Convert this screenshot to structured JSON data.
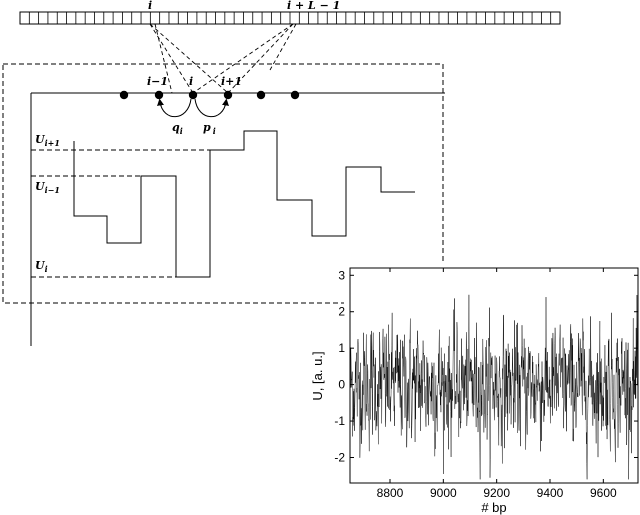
{
  "top_labels": {
    "i": "i",
    "i_plus_L_minus_1": "i + L − 1"
  },
  "site_labels": {
    "i_minus_1": "i−1",
    "i": "i",
    "i_plus_1": "i+1"
  },
  "rates": {
    "q": "q",
    "q_sub": "i",
    "p": "p",
    "p_sub": "i"
  },
  "potential_labels": {
    "u_plus": "U",
    "u_plus_sub": "i+1",
    "u_minus": "U",
    "u_minus_sub": "i−1",
    "u": "U",
    "u_sub": "i"
  },
  "chart_data": {
    "type": "line",
    "xlabel": "# bp",
    "ylabel": "U, [a. u.]",
    "xlim": [
      8650,
      9730
    ],
    "ylim": [
      -2.7,
      3.2
    ],
    "xticks": [
      8800,
      9000,
      9200,
      9400,
      9600
    ],
    "yticks": [
      -2,
      -1,
      0,
      1,
      2,
      3
    ],
    "grid": false,
    "series": [
      {
        "description": "noisy potential profile sampled every 1 bp from 8650 to 9730",
        "x_start": 8650,
        "x_end": 9730,
        "mean": 0,
        "approx_std": 0.75,
        "approx_min": -2.6,
        "approx_max": 2.6
      }
    ]
  }
}
